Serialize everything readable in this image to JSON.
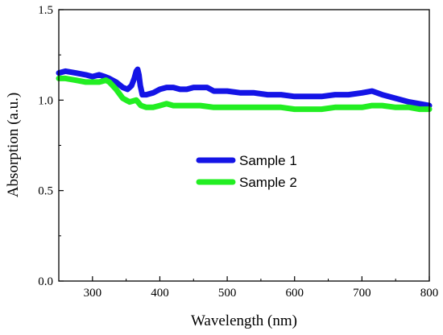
{
  "chart_data": {
    "type": "line",
    "xlabel": "Wavelength (nm)",
    "ylabel": "Absorption (a.u.)",
    "xlim": [
      250,
      800
    ],
    "ylim": [
      0.0,
      1.5
    ],
    "x_ticks": [
      {
        "value": 300,
        "label": "300"
      },
      {
        "value": 400,
        "label": "400"
      },
      {
        "value": 500,
        "label": "500"
      },
      {
        "value": 600,
        "label": "600"
      },
      {
        "value": 700,
        "label": "700"
      },
      {
        "value": 800,
        "label": "800"
      }
    ],
    "y_ticks": [
      {
        "value": 0.0,
        "label": "0.0"
      },
      {
        "value": 0.5,
        "label": "0.5"
      },
      {
        "value": 1.0,
        "label": "1.0"
      },
      {
        "value": 1.5,
        "label": "1.5"
      }
    ],
    "grid": false,
    "legend_position": "center",
    "series": [
      {
        "name": "Sample 1",
        "color": "#1414e6",
        "x": [
          250,
          260,
          275,
          290,
          300,
          310,
          318,
          325,
          335,
          345,
          352,
          358,
          362,
          365,
          367,
          369,
          371,
          374,
          380,
          390,
          400,
          410,
          420,
          430,
          440,
          450,
          460,
          470,
          480,
          500,
          520,
          540,
          560,
          580,
          600,
          620,
          640,
          660,
          680,
          700,
          715,
          730,
          750,
          770,
          785,
          800
        ],
        "y": [
          1.15,
          1.16,
          1.15,
          1.14,
          1.13,
          1.14,
          1.13,
          1.12,
          1.1,
          1.07,
          1.06,
          1.08,
          1.12,
          1.16,
          1.17,
          1.14,
          1.08,
          1.03,
          1.03,
          1.04,
          1.06,
          1.07,
          1.07,
          1.06,
          1.06,
          1.07,
          1.07,
          1.07,
          1.05,
          1.05,
          1.04,
          1.04,
          1.03,
          1.03,
          1.02,
          1.02,
          1.02,
          1.03,
          1.03,
          1.04,
          1.05,
          1.03,
          1.01,
          0.99,
          0.98,
          0.97
        ]
      },
      {
        "name": "Sample 2",
        "color": "#22ee22",
        "x": [
          250,
          260,
          275,
          290,
          300,
          310,
          320,
          325,
          335,
          345,
          355,
          365,
          372,
          380,
          390,
          400,
          410,
          420,
          440,
          460,
          480,
          500,
          520,
          540,
          560,
          580,
          600,
          620,
          640,
          660,
          680,
          700,
          715,
          730,
          750,
          770,
          785,
          800
        ],
        "y": [
          1.12,
          1.12,
          1.11,
          1.1,
          1.1,
          1.1,
          1.11,
          1.1,
          1.06,
          1.01,
          0.99,
          1.0,
          0.97,
          0.96,
          0.96,
          0.97,
          0.98,
          0.97,
          0.97,
          0.97,
          0.96,
          0.96,
          0.96,
          0.96,
          0.96,
          0.96,
          0.95,
          0.95,
          0.95,
          0.96,
          0.96,
          0.96,
          0.97,
          0.97,
          0.96,
          0.96,
          0.95,
          0.95
        ]
      }
    ]
  }
}
